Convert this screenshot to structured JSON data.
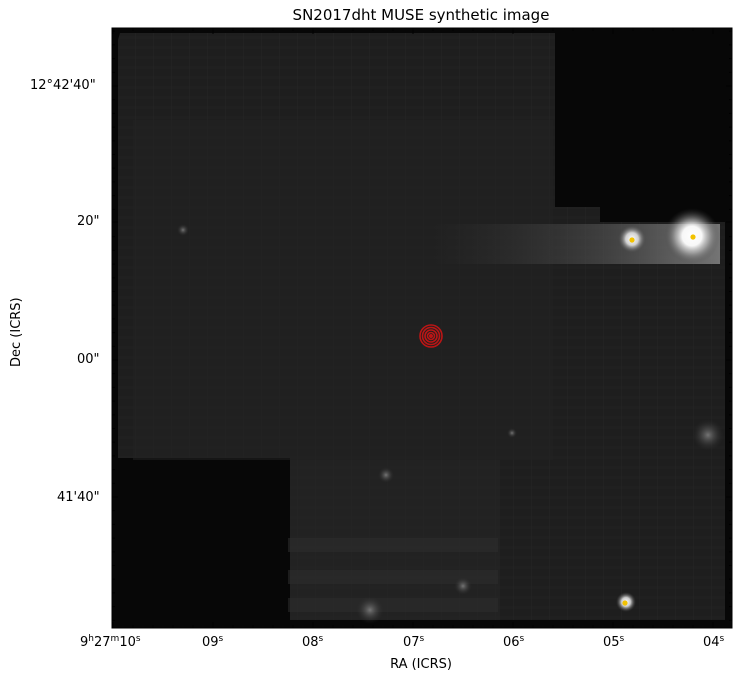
{
  "figure": {
    "title": "SN2017dht MUSE synthetic image",
    "xlabel": "RA (ICRS)",
    "ylabel": "Dec (ICRS)"
  },
  "x_ticks": [
    {
      "label_main": "9",
      "label_h": "h",
      "label_m_val": "27",
      "label_m": "m",
      "label_s_val": "10",
      "label_s": "s",
      "value": "9h27m10s"
    },
    {
      "label_s_val": "09",
      "label_s": "s",
      "value": "09s"
    },
    {
      "label_s_val": "08",
      "label_s": "s",
      "value": "08s"
    },
    {
      "label_s_val": "07",
      "label_s": "s",
      "value": "07s"
    },
    {
      "label_s_val": "06",
      "label_s": "s",
      "value": "06s"
    },
    {
      "label_s_val": "05",
      "label_s": "s",
      "value": "05s"
    },
    {
      "label_s_val": "04",
      "label_s": "s",
      "value": "04s"
    }
  ],
  "y_ticks": [
    {
      "label": "12°42'40\""
    },
    {
      "label": "20\""
    },
    {
      "label": "00\""
    },
    {
      "label": "41'40\""
    }
  ],
  "colors": {
    "background_frame": "#ffffff",
    "image_dark": "#070707",
    "image_field": "#1e1e1e",
    "marker_red": "#d01818",
    "star_yellow": "#f2c200",
    "axis": "#000000"
  },
  "image": {
    "colormap": "grayscale",
    "sources": [
      {
        "name": "bright-star-east",
        "kind": "star",
        "marked": "yellow-dot"
      },
      {
        "name": "star-east-2",
        "kind": "star",
        "marked": "yellow-dot"
      },
      {
        "name": "star-south",
        "kind": "star",
        "marked": "yellow-dot"
      },
      {
        "name": "sn-position",
        "kind": "supernova",
        "marked": "red-concentric-circles"
      }
    ]
  }
}
